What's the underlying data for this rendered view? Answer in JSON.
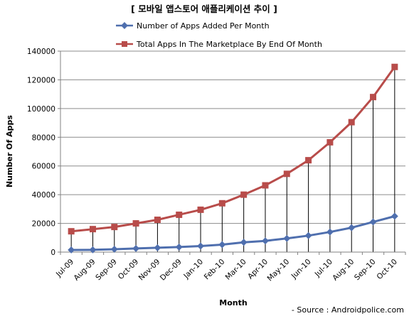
{
  "chart_data": {
    "type": "line",
    "title": "[ 모바일 앱스토어 애플리케이션 추이 ]",
    "xlabel": "Month",
    "ylabel": "Number Of Apps",
    "categories": [
      "Jul-09",
      "Aug-09",
      "Sep-09",
      "Oct-09",
      "Nov-09",
      "Dec-09",
      "Jan-10",
      "Feb-10",
      "Mar-10",
      "Apr-10",
      "May-10",
      "Jun-10",
      "Jul-10",
      "Aug-10",
      "Sep-10",
      "Oct-10"
    ],
    "ylim": [
      0,
      140000
    ],
    "yticks": [
      "0",
      "20000",
      "40000",
      "60000",
      "80000",
      "100000",
      "120000",
      "140000"
    ],
    "grid": true,
    "legend_position": "top",
    "drop_lines": true,
    "series": [
      {
        "name": "Number of Apps Added Per Month",
        "marker": "diamond",
        "color": "#4f6fae",
        "values": [
          1500,
          1600,
          2000,
          2500,
          3000,
          3500,
          4200,
          5200,
          6800,
          7800,
          9500,
          11500,
          14000,
          17000,
          21000,
          25000
        ]
      },
      {
        "name": "Total Apps In The Marketplace By End Of Month",
        "marker": "square",
        "color": "#b84c4a",
        "values": [
          14500,
          16000,
          17500,
          20000,
          22500,
          26000,
          29500,
          34000,
          40000,
          46500,
          54500,
          64000,
          76500,
          90500,
          108000,
          129000
        ]
      }
    ],
    "source_note": "- Source : Androidpolice.com"
  }
}
